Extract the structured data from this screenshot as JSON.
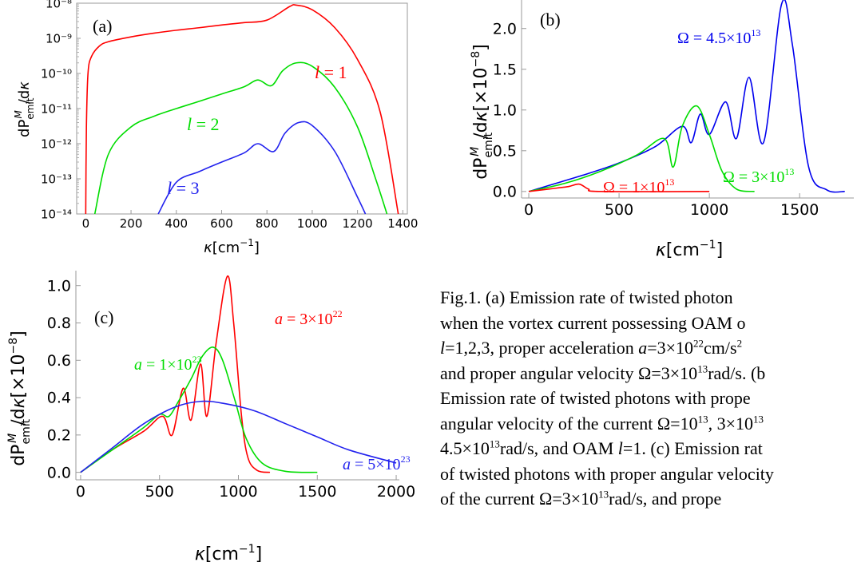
{
  "chart_data": [
    {
      "panel_label": "(a)",
      "type": "line",
      "xlabel": "κ[cm⁻¹]",
      "ylabel": "dPemit^M/dκ",
      "yscale": "log",
      "xlim": [
        -40,
        1420
      ],
      "ylim": [
        1e-14,
        1e-08
      ],
      "x_ticks": [
        "0",
        "200",
        "400",
        "600",
        "800",
        "1000",
        "1200",
        "1400"
      ],
      "y_ticks": [
        "10⁻¹⁴",
        "10⁻¹³",
        "10⁻¹²",
        "10⁻¹¹",
        "10⁻¹⁰",
        "10⁻⁹",
        "10⁻⁸"
      ],
      "series": [
        {
          "name": "l = 1",
          "color": "#ff0000",
          "points": [
            [
              0,
              1e-14
            ],
            [
              3,
              3e-12
            ],
            [
              10,
              1e-10
            ],
            [
              25,
              3e-10
            ],
            [
              60,
              6e-10
            ],
            [
              100,
              8e-10
            ],
            [
              200,
              1.1e-09
            ],
            [
              300,
              1.4e-09
            ],
            [
              400,
              1.7e-09
            ],
            [
              500,
              2e-09
            ],
            [
              600,
              2.4e-09
            ],
            [
              700,
              2.8e-09
            ],
            [
              800,
              3.3e-09
            ],
            [
              900,
              8e-09
            ],
            [
              930,
              8.8e-09
            ],
            [
              1000,
              6.5e-09
            ],
            [
              1100,
              2e-09
            ],
            [
              1200,
              2.5e-10
            ],
            [
              1300,
              8e-12
            ],
            [
              1380,
              1e-14
            ]
          ]
        },
        {
          "name": "l = 2",
          "color": "#00dd00",
          "points": [
            [
              40,
              1e-14
            ],
            [
              100,
              5e-13
            ],
            [
              200,
              3e-12
            ],
            [
              300,
              6e-12
            ],
            [
              400,
              1e-11
            ],
            [
              500,
              1.6e-11
            ],
            [
              600,
              2.6e-11
            ],
            [
              700,
              4.2e-11
            ],
            [
              760,
              6.5e-11
            ],
            [
              820,
              4.5e-11
            ],
            [
              870,
              1.2e-10
            ],
            [
              930,
              2e-10
            ],
            [
              1000,
              1.6e-10
            ],
            [
              1100,
              4e-11
            ],
            [
              1200,
              3e-12
            ],
            [
              1280,
              1e-13
            ],
            [
              1330,
              1e-14
            ]
          ]
        },
        {
          "name": "l = 3",
          "color": "#2222ee",
          "points": [
            [
              320,
              1e-14
            ],
            [
              400,
              8e-14
            ],
            [
              500,
              1.6e-13
            ],
            [
              600,
              3e-13
            ],
            [
              700,
              5.5e-13
            ],
            [
              760,
              1e-12
            ],
            [
              830,
              6e-13
            ],
            [
              880,
              2e-12
            ],
            [
              940,
              4e-12
            ],
            [
              1000,
              3.3e-12
            ],
            [
              1100,
              6e-13
            ],
            [
              1200,
              3e-14
            ],
            [
              1235,
              1e-14
            ]
          ]
        }
      ],
      "annotations": [
        "l = 1",
        "l = 2",
        "l = 3"
      ]
    },
    {
      "panel_label": "(b)",
      "type": "line",
      "xlabel": "κ[cm⁻¹]",
      "ylabel": "dPemit^M/dκ[×10⁻⁸]",
      "xlim": [
        -40,
        1800
      ],
      "ylim": [
        -0.08,
        2.35
      ],
      "x_ticks": [
        "0",
        "500",
        "1000",
        "1500"
      ],
      "y_ticks": [
        "0.0",
        "0.5",
        "1.0",
        "1.5",
        "2.0"
      ],
      "series": [
        {
          "name": "Ω = 4.5×10¹³",
          "color": "#0000ee",
          "points": [
            [
              0,
              0
            ],
            [
              300,
              0.2
            ],
            [
              500,
              0.35
            ],
            [
              700,
              0.55
            ],
            [
              850,
              0.8
            ],
            [
              900,
              0.6
            ],
            [
              950,
              0.95
            ],
            [
              1000,
              0.7
            ],
            [
              1090,
              1.1
            ],
            [
              1150,
              0.65
            ],
            [
              1220,
              1.4
            ],
            [
              1300,
              0.6
            ],
            [
              1400,
              2.3
            ],
            [
              1460,
              1.8
            ],
            [
              1550,
              0.3
            ],
            [
              1650,
              0.02
            ],
            [
              1750,
              0
            ]
          ]
        },
        {
          "name": "Ω = 3×10¹³",
          "color": "#00dd00",
          "points": [
            [
              0,
              0
            ],
            [
              200,
              0.1
            ],
            [
              400,
              0.25
            ],
            [
              600,
              0.45
            ],
            [
              750,
              0.65
            ],
            [
              800,
              0.3
            ],
            [
              850,
              0.8
            ],
            [
              930,
              1.05
            ],
            [
              1000,
              0.7
            ],
            [
              1070,
              0.25
            ],
            [
              1150,
              0.03
            ],
            [
              1250,
              0
            ]
          ]
        },
        {
          "name": "Ω = 1×10¹³",
          "color": "#ff0000",
          "points": [
            [
              0,
              0
            ],
            [
              150,
              0.04
            ],
            [
              220,
              0.06
            ],
            [
              280,
              0.09
            ],
            [
              330,
              0.03
            ],
            [
              400,
              0
            ],
            [
              1000,
              0
            ]
          ]
        }
      ],
      "annotations": [
        "Ω = 4.5×10¹³",
        "Ω = 3×10¹³",
        "Ω = 1×10¹³"
      ]
    },
    {
      "panel_label": "(c)",
      "type": "line",
      "xlabel": "κ[cm⁻¹]",
      "ylabel": "dPemit^M/dκ[×10⁻⁸]",
      "xlim": [
        -30,
        2020
      ],
      "ylim": [
        -0.04,
        1.08
      ],
      "x_ticks": [
        "0",
        "500",
        "1000",
        "1500",
        "2000"
      ],
      "y_ticks": [
        "0.0",
        "0.2",
        "0.4",
        "0.6",
        "0.8",
        "1.0"
      ],
      "series": [
        {
          "name": "a = 3×10²²",
          "color": "#ff0000",
          "points": [
            [
              0,
              0
            ],
            [
              200,
              0.12
            ],
            [
              400,
              0.22
            ],
            [
              520,
              0.3
            ],
            [
              580,
              0.2
            ],
            [
              650,
              0.45
            ],
            [
              700,
              0.28
            ],
            [
              760,
              0.58
            ],
            [
              800,
              0.3
            ],
            [
              860,
              0.7
            ],
            [
              930,
              1.05
            ],
            [
              970,
              0.8
            ],
            [
              1020,
              0.3
            ],
            [
              1060,
              0.08
            ],
            [
              1120,
              0.01
            ],
            [
              1200,
              0
            ]
          ]
        },
        {
          "name": "a = 1×10²³",
          "color": "#00dd00",
          "points": [
            [
              0,
              0
            ],
            [
              200,
              0.12
            ],
            [
              400,
              0.24
            ],
            [
              500,
              0.31
            ],
            [
              560,
              0.3
            ],
            [
              620,
              0.38
            ],
            [
              700,
              0.5
            ],
            [
              770,
              0.62
            ],
            [
              840,
              0.67
            ],
            [
              900,
              0.6
            ],
            [
              980,
              0.38
            ],
            [
              1050,
              0.18
            ],
            [
              1150,
              0.05
            ],
            [
              1300,
              0.005
            ],
            [
              1500,
              0
            ]
          ]
        },
        {
          "name": "a = 5×10²³",
          "color": "#2222ee",
          "points": [
            [
              0,
              0
            ],
            [
              200,
              0.13
            ],
            [
              400,
              0.26
            ],
            [
              600,
              0.35
            ],
            [
              760,
              0.38
            ],
            [
              900,
              0.37
            ],
            [
              1100,
              0.33
            ],
            [
              1300,
              0.26
            ],
            [
              1500,
              0.19
            ],
            [
              1700,
              0.12
            ],
            [
              2000,
              0.05
            ]
          ]
        }
      ],
      "annotations": [
        "a = 3×10²²",
        "a = 1×10²³",
        "a = 5×10²³"
      ]
    }
  ],
  "caption": {
    "l1": "Fig.1. (a) Emission rate of twisted photon",
    "l2": "when the vortex current possessing OAM o",
    "l3a": "l",
    "l3b": "=1,2,3, proper acceleration ",
    "l3c": "a",
    "l3d": "=3×10",
    "l3e": "22",
    "l3f": "cm/s",
    "l3g": "2",
    "l4a": "and proper angular velocity Ω=3×10",
    "l4b": "13",
    "l4c": "rad/s. (b",
    "l5": "Emission rate of twisted photons with prope",
    "l6a": "angular velocity of the current Ω=10",
    "l6b": "13",
    "l6c": ", 3×10",
    "l6d": "13",
    "l7a": "4.5×10",
    "l7b": "13",
    "l7c": "rad/s, and OAM ",
    "l7d": "l",
    "l7e": "=1. (c) Emission rat",
    "l8": "of twisted photons with proper angular velocity",
    "l9a": "of the current Ω=3×10",
    "l9b": "13",
    "l9c": "rad/s, and prope"
  }
}
